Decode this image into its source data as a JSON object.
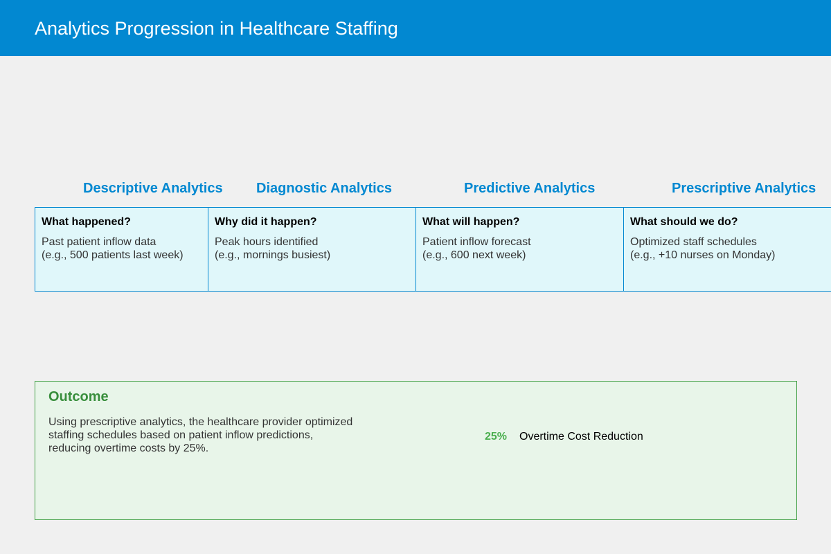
{
  "header": {
    "title": "Analytics Progression in Healthcare Staffing"
  },
  "stages": [
    {
      "heading": "Descriptive Analytics",
      "question": "What happened?",
      "desc_line1": "Past patient inflow data",
      "desc_line2": "(e.g., 500 patients last week)"
    },
    {
      "heading": "Diagnostic Analytics",
      "question": "Why did it happen?",
      "desc_line1": "Peak hours identified",
      "desc_line2": "(e.g., mornings busiest)"
    },
    {
      "heading": "Predictive Analytics",
      "question": "What will happen?",
      "desc_line1": "Patient inflow forecast",
      "desc_line2": "(e.g., 600 next week)"
    },
    {
      "heading": "Prescriptive Analytics",
      "question": "What should we do?",
      "desc_line1": "Optimized staff schedules",
      "desc_line2": "(e.g., +10 nurses on Monday)"
    }
  ],
  "outcome": {
    "title": "Outcome",
    "text_line1": "Using prescriptive analytics, the healthcare provider optimized",
    "text_line2": "staffing schedules based on patient inflow predictions,",
    "text_line3": "reducing overtime costs by 25%.",
    "metric_value": "25%",
    "metric_label": "Overtime Cost Reduction"
  },
  "colors": {
    "header_bg": "#0288d1",
    "page_bg": "#f0f0f0",
    "stage_heading": "#0288d1",
    "stage_box_bg": "#e0f7fa",
    "stage_box_border": "#0288d1",
    "outcome_bg": "#e8f5e9",
    "outcome_border": "#43a047",
    "outcome_title": "#388e3c",
    "metric_value": "#4caf50"
  }
}
